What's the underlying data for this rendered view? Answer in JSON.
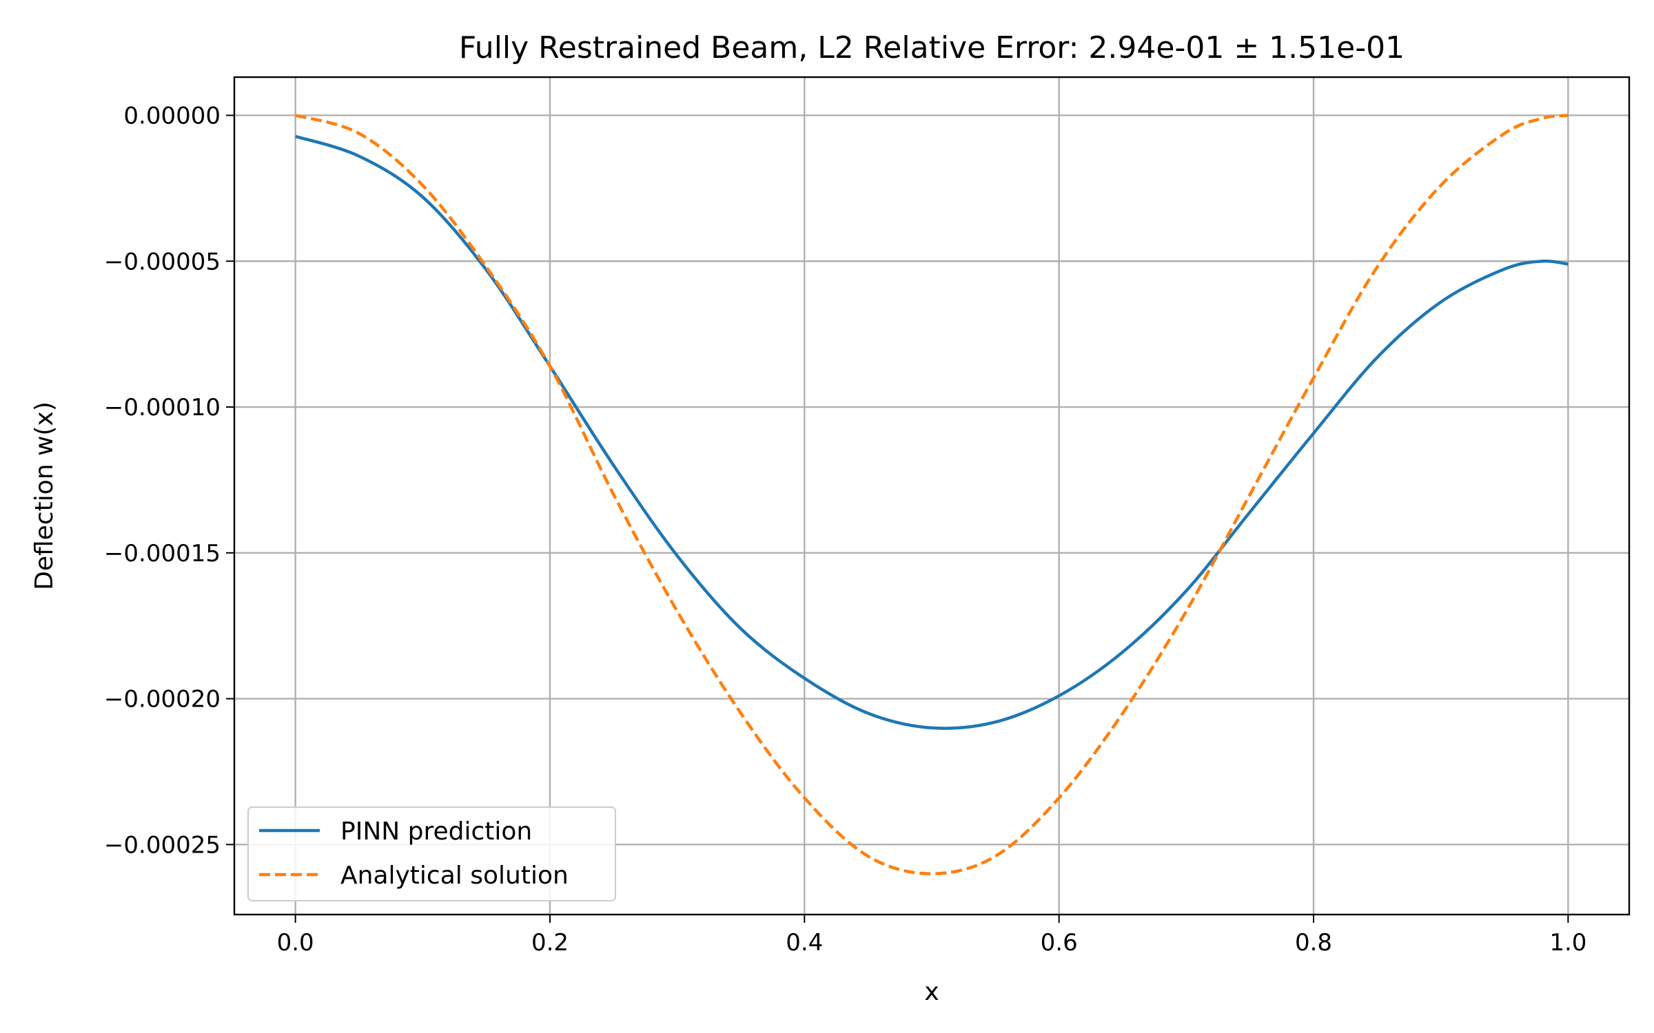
{
  "chart_data": {
    "type": "line",
    "title": "Fully Restrained Beam, L2 Relative Error: 2.94e-01 ± 1.51e-01",
    "xlabel": "x",
    "ylabel": "Deflection w(x)",
    "xlim": [
      -0.048,
      1.048
    ],
    "ylim": [
      -0.000274,
      1.31e-05
    ],
    "xticks": [
      0.0,
      0.2,
      0.4,
      0.6,
      0.8,
      1.0
    ],
    "xtick_labels": [
      "0.0",
      "0.2",
      "0.4",
      "0.6",
      "0.8",
      "1.0"
    ],
    "yticks": [
      0.0,
      -5e-05,
      -0.0001,
      -0.00015,
      -0.0002,
      -0.00025
    ],
    "ytick_labels": [
      "0.00000",
      "−0.00005",
      "−0.00010",
      "−0.00015",
      "−0.00020",
      "−0.00025"
    ],
    "grid": true,
    "legend_position": "lower-left",
    "x": [
      0.0,
      0.05,
      0.1,
      0.15,
      0.2,
      0.25,
      0.3,
      0.35,
      0.4,
      0.45,
      0.5,
      0.55,
      0.6,
      0.65,
      0.7,
      0.75,
      0.8,
      0.85,
      0.9,
      0.95,
      0.98,
      1.0
    ],
    "series": [
      {
        "name": "PINN prediction",
        "color": "#1f77b4",
        "style": "solid",
        "values": [
          -7.2e-06,
          -1.4e-05,
          -2.8e-05,
          -5.3e-05,
          -8.6e-05,
          -0.00012,
          -0.000151,
          -0.000176,
          -0.000193,
          -0.000205,
          -0.00021,
          -0.000208,
          -0.000199,
          -0.000184,
          -0.000163,
          -0.000136,
          -0.000109,
          -8.3e-05,
          -6.4e-05,
          -5.27e-05,
          -5e-05,
          -5.1e-05
        ]
      },
      {
        "name": "Analytical solution",
        "color": "#ff7f0e",
        "style": "dashed",
        "values": [
          0.0,
          -6.2e-06,
          -2.4e-05,
          -5.2e-05,
          -8.6e-05,
          -0.00013,
          -0.00017,
          -0.000205,
          -0.000234,
          -0.000254,
          -0.00026,
          -0.000254,
          -0.000234,
          -0.000205,
          -0.00017,
          -0.00013,
          -9e-05,
          -5.2e-05,
          -2.4e-05,
          -6.2e-06,
          -1e-06,
          0.0
        ]
      }
    ]
  }
}
